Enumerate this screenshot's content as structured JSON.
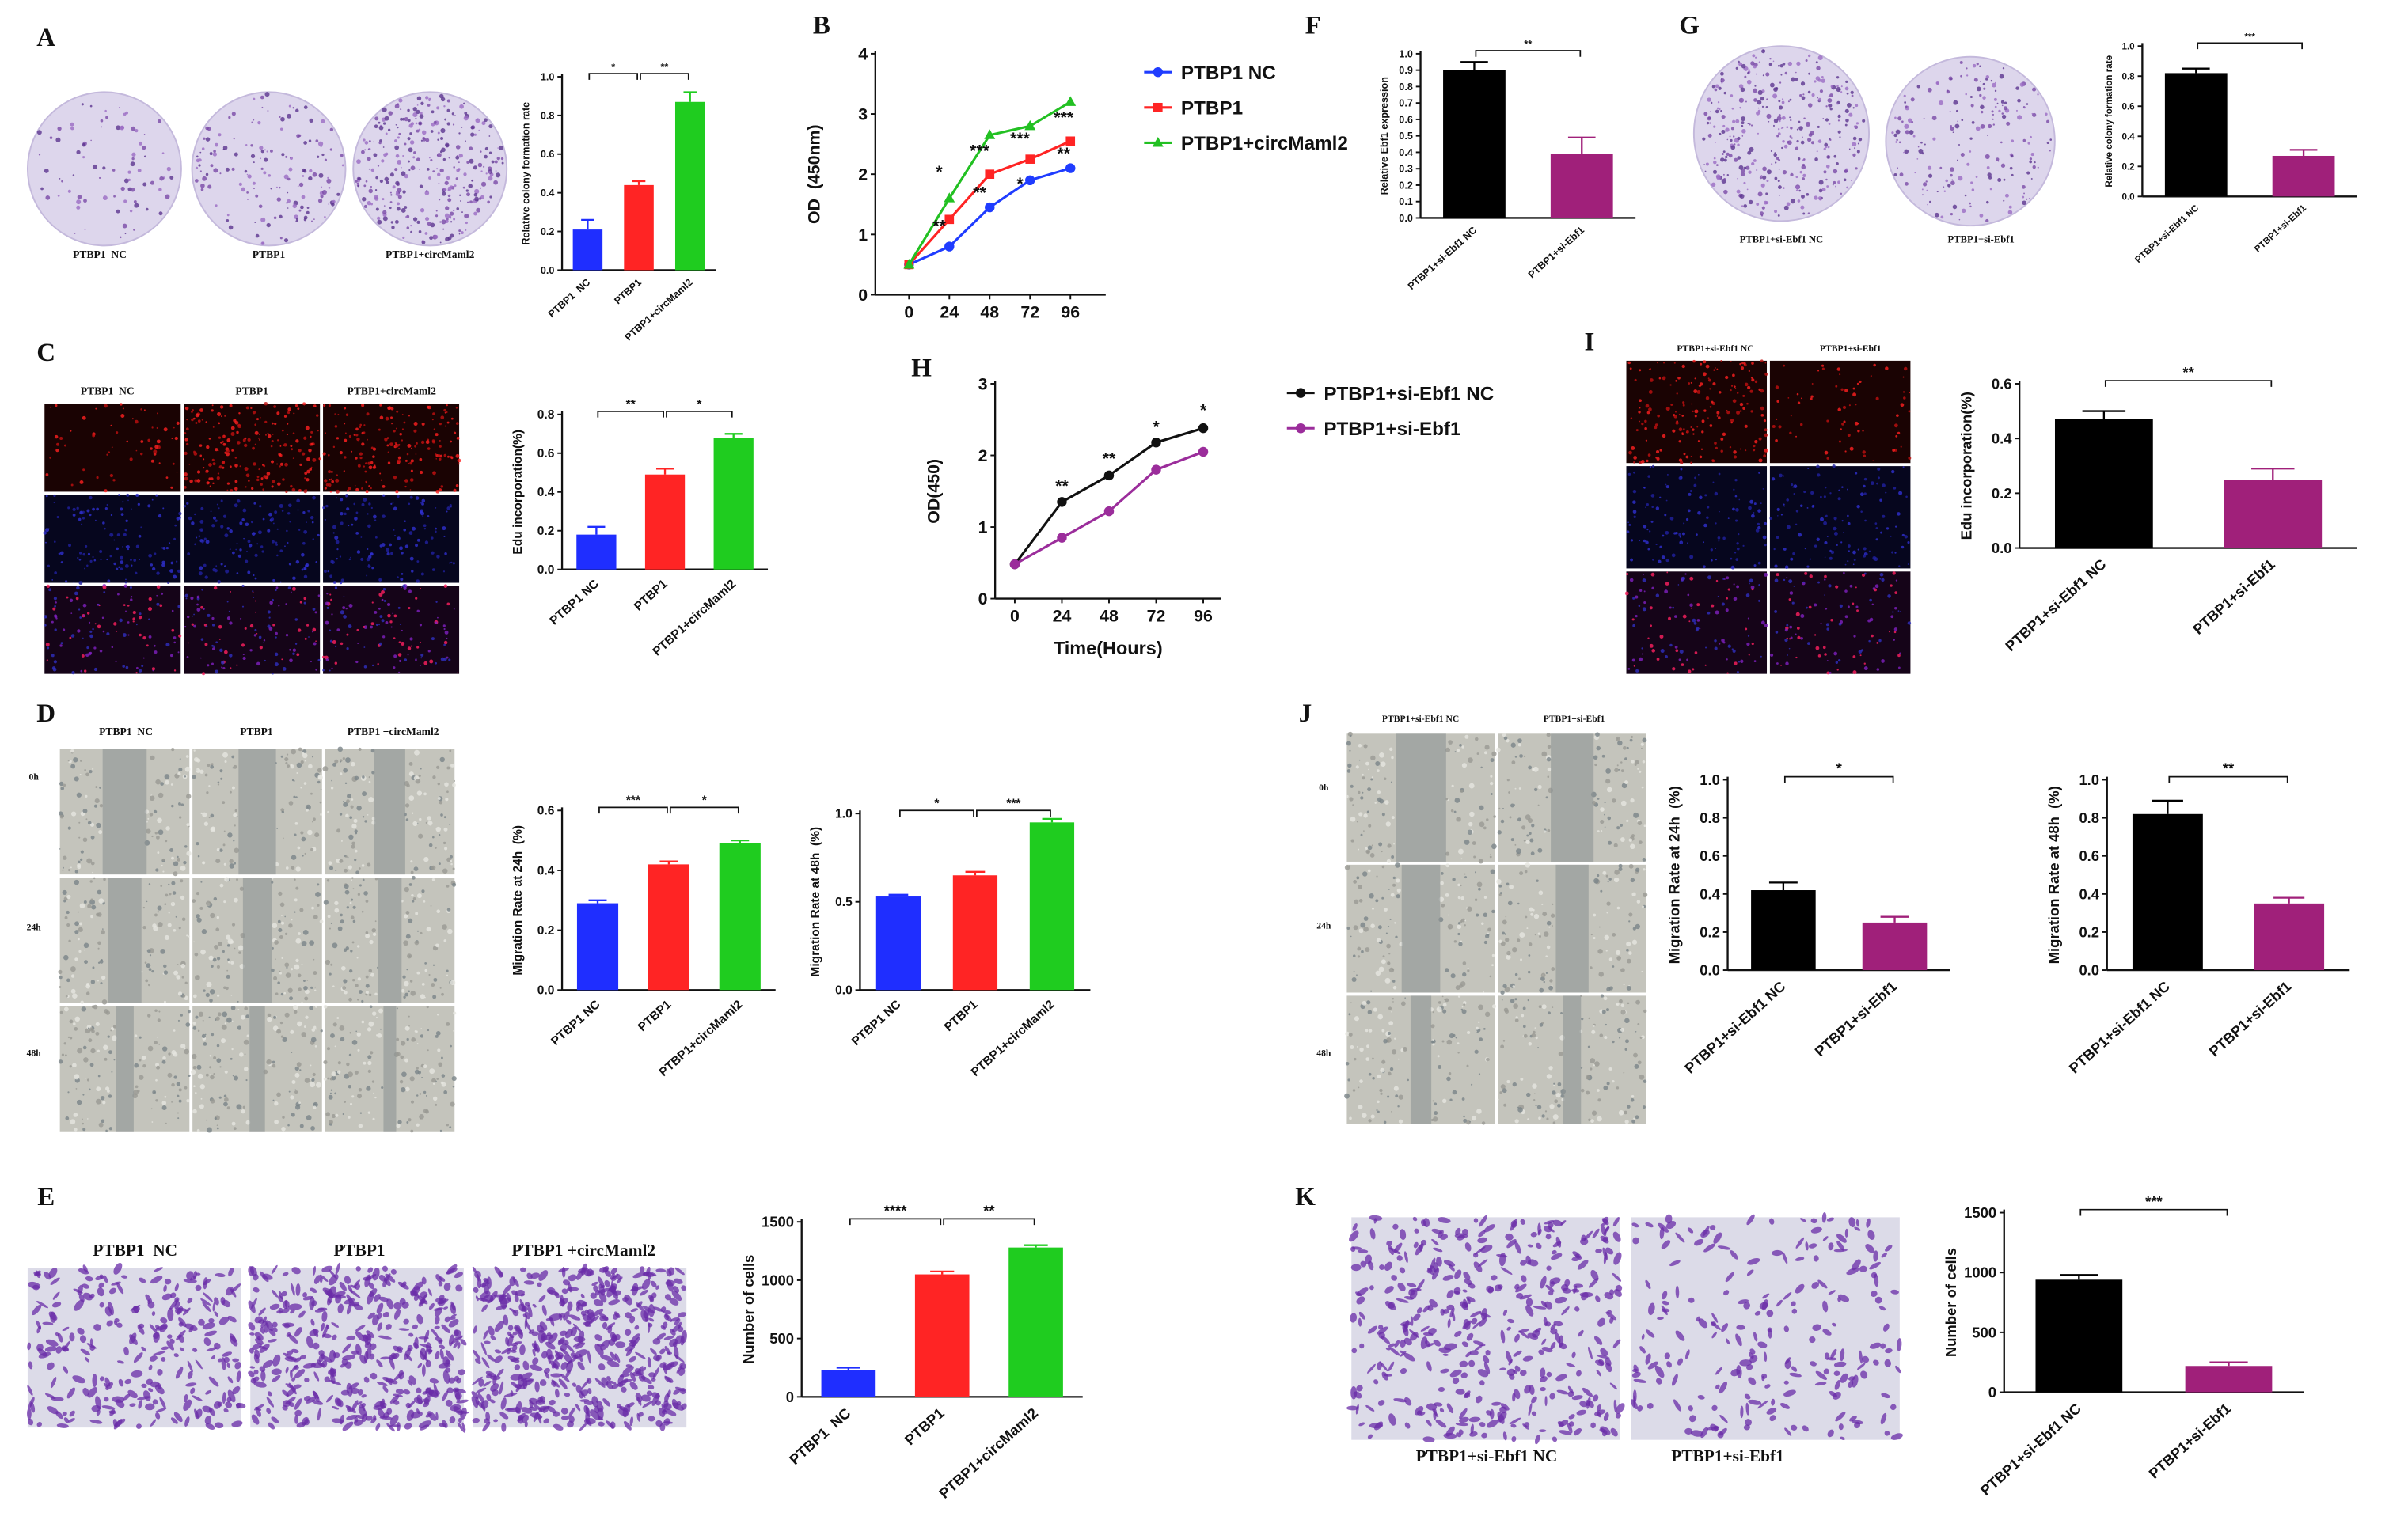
{
  "panels": [
    {
      "letter": "A",
      "column_labels": [
        "PTBP1  NC",
        "PTBP1",
        "PTBP1+circMaml2"
      ]
    },
    {
      "letter": "B"
    },
    {
      "letter": "C",
      "column_labels": [
        "PTBP1  NC",
        "PTBP1",
        "PTBP1+circMaml2"
      ]
    },
    {
      "letter": "D",
      "column_labels": [
        "PTBP1  NC",
        "PTBP1",
        "PTBP1 +circMaml2"
      ],
      "row_labels": [
        "0h",
        "24h",
        "48h"
      ]
    },
    {
      "letter": "E",
      "column_labels": [
        "PTBP1  NC",
        "PTBP1",
        "PTBP1 +circMaml2"
      ]
    },
    {
      "letter": "F"
    },
    {
      "letter": "G",
      "column_labels": [
        "PTBP1+si-Ebf1 NC",
        "PTBP1+si-Ebf1"
      ]
    },
    {
      "letter": "H"
    },
    {
      "letter": "I",
      "column_labels": [
        "PTBP1+si-Ebf1 NC",
        "PTBP1+si-Ebf1"
      ]
    },
    {
      "letter": "J",
      "column_labels": [
        "PTBP1+si-Ebf1 NC",
        "PTBP1+si-Ebf1"
      ],
      "row_labels": [
        "0h",
        "24h",
        "48h"
      ]
    },
    {
      "letter": "K",
      "column_labels": [
        "PTBP1+si-Ebf1 NC",
        "PTBP1+si-Ebf1"
      ]
    }
  ],
  "chart_data": [
    {
      "type": "bar",
      "ylabel": "Relative colony formation rate",
      "categories": [
        "PTBP1  NC",
        "PTBP1",
        "PTBP1+circMaml2"
      ],
      "values": [
        0.21,
        0.44,
        0.87
      ],
      "errors": [
        0.05,
        0.02,
        0.05
      ],
      "colors": [
        "#1f2eff",
        "#ff2424",
        "#1fcc1f"
      ],
      "ylim": [
        0,
        1.0
      ],
      "yticks": [
        {
          "value": 0,
          "label": "0.0"
        },
        0.2,
        0.4,
        0.6,
        0.8,
        {
          "value": 1.0,
          "label": "1.0"
        }
      ],
      "significance": [
        "*",
        "**"
      ]
    },
    {
      "type": "line",
      "ylabel": "OD  (450nm)",
      "x": [
        0,
        24,
        48,
        72,
        96
      ],
      "xlim": [
        -20,
        117
      ],
      "xticks": [
        0,
        24,
        48,
        72,
        96
      ],
      "ylim": [
        0,
        4
      ],
      "yticks": [
        0,
        1,
        2,
        3,
        4
      ],
      "series": [
        {
          "name": "PTBP1 NC",
          "color": "#1f3cff",
          "marker": "circle",
          "values": [
            0.5,
            0.8,
            1.45,
            1.9,
            2.1
          ]
        },
        {
          "name": "PTBP1",
          "color": "#ff2424",
          "marker": "square",
          "values": [
            0.5,
            1.25,
            2.0,
            2.25,
            2.55
          ]
        },
        {
          "name": "PTBP1+circMaml2",
          "color": "#22c022",
          "marker": "triangle",
          "values": [
            0.5,
            1.6,
            2.65,
            2.8,
            3.2
          ]
        }
      ],
      "annotations": [
        {
          "x": 18,
          "y": 1.95,
          "text": "*"
        },
        {
          "x": 18,
          "y": 1.05,
          "text": "**"
        },
        {
          "x": 42,
          "y": 2.3,
          "text": "***"
        },
        {
          "x": 42,
          "y": 1.6,
          "text": "**"
        },
        {
          "x": 66,
          "y": 2.5,
          "text": "***"
        },
        {
          "x": 66,
          "y": 1.75,
          "text": "*"
        },
        {
          "x": 92,
          "y": 2.85,
          "text": "***"
        },
        {
          "x": 92,
          "y": 2.25,
          "text": "**"
        }
      ]
    },
    {
      "type": "bar",
      "ylabel": "Edu incorporation(%)",
      "categories": [
        "PTBP1 NC",
        "PTBP1",
        "PTBP1+circMaml2"
      ],
      "values": [
        0.18,
        0.49,
        0.68
      ],
      "errors": [
        0.04,
        0.03,
        0.02
      ],
      "colors": [
        "#1f2eff",
        "#ff2424",
        "#1fcc1f"
      ],
      "ylim": [
        0,
        0.8
      ],
      "yticks": [
        {
          "value": 0,
          "label": "0.0"
        },
        0.2,
        0.4,
        0.6,
        0.8
      ],
      "significance": [
        "**",
        "*"
      ]
    },
    {
      "type": "bar",
      "ylabel": "Migration Rate at 24h  (%)",
      "categories": [
        "PTBP1 NC",
        "PTBP1",
        "PTBP1+circMaml2"
      ],
      "values": [
        0.29,
        0.42,
        0.49
      ],
      "errors": [
        0.01,
        0.01,
        0.01
      ],
      "colors": [
        "#1f2eff",
        "#ff2424",
        "#1fcc1f"
      ],
      "ylim": [
        0,
        0.6
      ],
      "yticks": [
        {
          "value": 0,
          "label": "0.0"
        },
        0.2,
        0.4,
        0.6
      ],
      "significance": [
        "***",
        "*"
      ]
    },
    {
      "type": "bar",
      "ylabel": "Migration Rate at 48h  (%)",
      "categories": [
        "PTBP1 NC",
        "PTBP1",
        "PTBP1+circMaml2"
      ],
      "values": [
        0.53,
        0.65,
        0.95
      ],
      "errors": [
        0.01,
        0.02,
        0.02
      ],
      "colors": [
        "#1f2eff",
        "#ff2424",
        "#1fcc1f"
      ],
      "ylim": [
        0,
        1.0
      ],
      "yticks": [
        {
          "value": 0,
          "label": "0.0"
        },
        0.5,
        {
          "value": 1.0,
          "label": "1.0"
        }
      ],
      "significance": [
        "*",
        "***"
      ]
    },
    {
      "type": "bar",
      "ylabel": "Number of cells",
      "categories": [
        "PTBP1  NC",
        "PTBP1",
        "PTBP1+circMaml2"
      ],
      "values": [
        230,
        1050,
        1280
      ],
      "errors": [
        20,
        25,
        20
      ],
      "colors": [
        "#1f2eff",
        "#ff2424",
        "#1fcc1f"
      ],
      "ylim": [
        0,
        1500
      ],
      "yticks": [
        0,
        500,
        1000,
        1500
      ],
      "significance": [
        "****",
        "**"
      ]
    },
    {
      "type": "bar",
      "ylabel": "Relative Ebf1 expression",
      "categories": [
        "PTBP1+si-Ebf1 NC",
        "PTBP1+si-Ebf1"
      ],
      "values": [
        0.9,
        0.39
      ],
      "errors": [
        0.05,
        0.1
      ],
      "colors": [
        "#000000",
        "#a0207a"
      ],
      "ylim": [
        0,
        1.0
      ],
      "yticks": [
        {
          "value": 0,
          "label": "0.0"
        },
        0.1,
        0.2,
        0.3,
        0.4,
        0.5,
        0.6,
        0.7,
        0.8,
        0.9,
        {
          "value": 1.0,
          "label": "1.0"
        }
      ],
      "significance": [
        "**"
      ]
    },
    {
      "type": "bar",
      "ylabel": "Relative colony formation rate",
      "categories": [
        "PTBP1+si-Ebf1 NC",
        "PTBP1+si-Ebf1"
      ],
      "values": [
        0.82,
        0.27
      ],
      "errors": [
        0.03,
        0.04
      ],
      "colors": [
        "#000000",
        "#a0207a"
      ],
      "ylim": [
        0,
        1.0
      ],
      "yticks": [
        {
          "value": 0,
          "label": "0.0"
        },
        0.2,
        0.4,
        0.6,
        0.8,
        {
          "value": 1.0,
          "label": "1.0"
        }
      ],
      "significance": [
        "***"
      ]
    },
    {
      "type": "line",
      "ylabel": "OD(450)",
      "xlabel": "Time(Hours)",
      "x": [
        0,
        24,
        48,
        72,
        96
      ],
      "xlim": [
        -10,
        105
      ],
      "xticks": [
        0,
        24,
        48,
        72,
        96
      ],
      "ylim": [
        0,
        3
      ],
      "yticks": [
        0,
        1,
        2,
        3
      ],
      "series": [
        {
          "name": "PTBP1+si-Ebf1 NC",
          "color": "#111111",
          "marker": "circle",
          "values": [
            0.48,
            1.35,
            1.72,
            2.18,
            2.38
          ]
        },
        {
          "name": "PTBP1+si-Ebf1",
          "color": "#9b2d9b",
          "marker": "circle",
          "values": [
            0.48,
            0.85,
            1.22,
            1.8,
            2.05
          ]
        }
      ],
      "annotations": [
        {
          "x": 24,
          "y": 1.5,
          "text": "**"
        },
        {
          "x": 48,
          "y": 1.88,
          "text": "**"
        },
        {
          "x": 72,
          "y": 2.32,
          "text": "*"
        },
        {
          "x": 96,
          "y": 2.55,
          "text": "*"
        }
      ]
    },
    {
      "type": "bar",
      "ylabel": "Edu incorporation(%)",
      "categories": [
        "PTBP1+si-Ebf1 NC",
        "PTBP1+si-Ebf1"
      ],
      "values": [
        0.47,
        0.25
      ],
      "errors": [
        0.03,
        0.04
      ],
      "colors": [
        "#000000",
        "#a0207a"
      ],
      "ylim": [
        0,
        0.6
      ],
      "yticks": [
        {
          "value": 0,
          "label": "0.0"
        },
        0.2,
        0.4,
        0.6
      ],
      "significance": [
        "**"
      ]
    },
    {
      "type": "bar",
      "ylabel": "Migration Rate at 24h  (%)",
      "categories": [
        "PTBP1+si-Ebf1 NC",
        "PTBP1+si-Ebf1"
      ],
      "values": [
        0.42,
        0.25
      ],
      "errors": [
        0.04,
        0.03
      ],
      "colors": [
        "#000000",
        "#a0207a"
      ],
      "ylim": [
        0,
        1.0
      ],
      "yticks": [
        {
          "value": 0,
          "label": "0.0"
        },
        0.2,
        0.4,
        0.6,
        0.8,
        {
          "value": 1.0,
          "label": "1.0"
        }
      ],
      "significance": [
        "*"
      ]
    },
    {
      "type": "bar",
      "ylabel": "Migration Rate at 48h  (%)",
      "categories": [
        "PTBP1+si-Ebf1 NC",
        "PTBP1+si-Ebf1"
      ],
      "values": [
        0.82,
        0.35
      ],
      "errors": [
        0.07,
        0.03
      ],
      "colors": [
        "#000000",
        "#a0207a"
      ],
      "ylim": [
        0,
        1.0
      ],
      "yticks": [
        {
          "value": 0,
          "label": "0.0"
        },
        0.2,
        0.4,
        0.6,
        0.8,
        {
          "value": 1.0,
          "label": "1.0"
        }
      ],
      "significance": [
        "**"
      ]
    },
    {
      "type": "bar",
      "ylabel": "Number of cells",
      "categories": [
        "PTBP1+si-Ebf1 NC",
        "PTBP1+si-Ebf1"
      ],
      "values": [
        940,
        220
      ],
      "errors": [
        40,
        30
      ],
      "colors": [
        "#000000",
        "#a0207a"
      ],
      "ylim": [
        0,
        1500
      ],
      "yticks": [
        0,
        500,
        1000,
        1500
      ],
      "significance": [
        "***"
      ]
    }
  ]
}
